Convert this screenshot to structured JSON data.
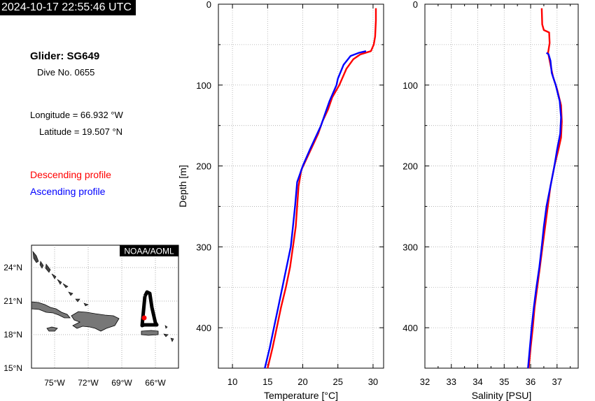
{
  "timestamp": "2024-10-17 22:55:46 UTC",
  "glider": {
    "title": "Glider: SG649",
    "dive": "Dive No. 0655",
    "longitude": "Longitude = 66.932 °W",
    "latitude": "Latitude = 19.507 °N"
  },
  "legend": {
    "descending": "Descending profile",
    "ascending": "Ascending profile"
  },
  "colors": {
    "descending": "#ff0000",
    "ascending": "#0000ff"
  },
  "map": {
    "badge": "NOAA/AOML",
    "lat_ticks": [
      "24°N",
      "21°N",
      "18°N",
      "15°N"
    ],
    "lon_ticks": [
      "75°W",
      "72°W",
      "69°W",
      "66°W"
    ]
  },
  "chart_data": [
    {
      "type": "line",
      "xlabel": "Temperature [°C]",
      "ylabel": "Depth [m]",
      "xlim": [
        8,
        31.5
      ],
      "ylim": [
        450,
        0
      ],
      "xticks": [
        "10",
        "15",
        "20",
        "25",
        "30"
      ],
      "yticks": [
        "0",
        "100",
        "200",
        "300",
        "400"
      ],
      "grid": true,
      "series": [
        {
          "name": "Descending profile",
          "points": [
            [
              30.4,
              5
            ],
            [
              30.4,
              20
            ],
            [
              30.3,
              40
            ],
            [
              30.1,
              50
            ],
            [
              29.7,
              58
            ],
            [
              28.2,
              62
            ],
            [
              27.2,
              68
            ],
            [
              26.2,
              80
            ],
            [
              25.2,
              100
            ],
            [
              24.2,
              115
            ],
            [
              23.6,
              130
            ],
            [
              22.8,
              145
            ],
            [
              22.2,
              160
            ],
            [
              21.4,
              175
            ],
            [
              20.6,
              190
            ],
            [
              19.8,
              205
            ],
            [
              19.4,
              225
            ],
            [
              19.2,
              250
            ],
            [
              19.0,
              275
            ],
            [
              18.6,
              300
            ],
            [
              18.2,
              325
            ],
            [
              17.6,
              350
            ],
            [
              16.9,
              375
            ],
            [
              16.3,
              400
            ],
            [
              15.7,
              425
            ],
            [
              15.0,
              450
            ]
          ]
        },
        {
          "name": "Ascending profile",
          "points": [
            [
              29.0,
              58
            ],
            [
              28.0,
              60
            ],
            [
              26.8,
              64
            ],
            [
              25.8,
              75
            ],
            [
              25.0,
              92
            ],
            [
              24.8,
              100
            ],
            [
              23.8,
              120
            ],
            [
              23.2,
              135
            ],
            [
              22.6,
              150
            ],
            [
              21.8,
              165
            ],
            [
              21.0,
              180
            ],
            [
              20.0,
              200
            ],
            [
              19.2,
              220
            ],
            [
              18.9,
              250
            ],
            [
              18.6,
              275
            ],
            [
              18.3,
              300
            ],
            [
              17.7,
              325
            ],
            [
              17.1,
              350
            ],
            [
              16.5,
              375
            ],
            [
              15.9,
              400
            ],
            [
              15.3,
              425
            ],
            [
              14.6,
              450
            ]
          ]
        }
      ]
    },
    {
      "type": "line",
      "xlabel": "Salinity [PSU]",
      "ylabel": "",
      "xlim": [
        32,
        37.8
      ],
      "ylim": [
        450,
        0
      ],
      "xticks": [
        "32",
        "33",
        "34",
        "35",
        "36",
        "37"
      ],
      "yticks": [
        "0",
        "100",
        "200",
        "300",
        "400"
      ],
      "grid": true,
      "series": [
        {
          "name": "Descending profile",
          "points": [
            [
              36.42,
              5
            ],
            [
              36.44,
              25
            ],
            [
              36.5,
              32
            ],
            [
              36.7,
              35
            ],
            [
              36.72,
              48
            ],
            [
              36.66,
              60
            ],
            [
              36.75,
              75
            ],
            [
              36.85,
              90
            ],
            [
              37.0,
              105
            ],
            [
              37.15,
              125
            ],
            [
              37.18,
              145
            ],
            [
              37.15,
              165
            ],
            [
              37.05,
              180
            ],
            [
              36.9,
              200
            ],
            [
              36.75,
              225
            ],
            [
              36.65,
              250
            ],
            [
              36.55,
              275
            ],
            [
              36.45,
              300
            ],
            [
              36.35,
              325
            ],
            [
              36.25,
              350
            ],
            [
              36.15,
              375
            ],
            [
              36.08,
              400
            ],
            [
              36.0,
              425
            ],
            [
              35.93,
              450
            ]
          ]
        },
        {
          "name": "Ascending profile",
          "points": [
            [
              36.6,
              60
            ],
            [
              36.68,
              62
            ],
            [
              36.75,
              70
            ],
            [
              36.8,
              85
            ],
            [
              36.95,
              100
            ],
            [
              37.1,
              120
            ],
            [
              37.15,
              140
            ],
            [
              37.12,
              160
            ],
            [
              37.0,
              180
            ],
            [
              36.9,
              200
            ],
            [
              36.75,
              225
            ],
            [
              36.6,
              250
            ],
            [
              36.5,
              275
            ],
            [
              36.42,
              300
            ],
            [
              36.33,
              325
            ],
            [
              36.22,
              350
            ],
            [
              36.12,
              375
            ],
            [
              36.04,
              400
            ],
            [
              35.97,
              425
            ],
            [
              35.9,
              450
            ]
          ]
        }
      ]
    }
  ]
}
